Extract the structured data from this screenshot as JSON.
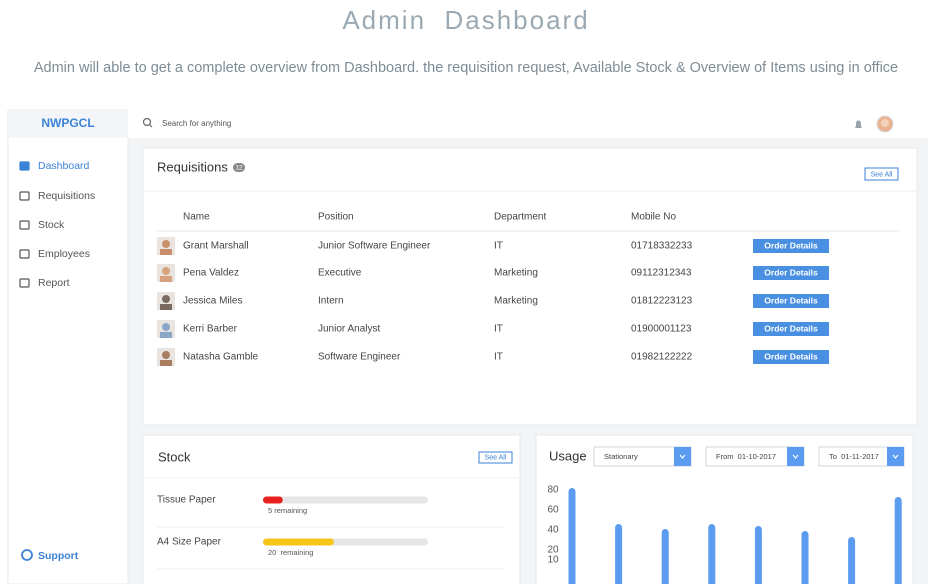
{
  "header": {
    "title": "Admin  Dashboard",
    "subtitle": "Admin will able to get a complete overview from Dashboard. the requisition request, Available Stock & Overview of Items using in office"
  },
  "sidebar": {
    "brand": "NWPGCL",
    "menu": [
      "Dashboard",
      "Requisitions",
      "Stock",
      "Employees",
      "Report"
    ],
    "support": "Support"
  },
  "topbar": {
    "search_placeholder": "Search for anything"
  },
  "requisitions": {
    "title": "Requisitions",
    "count": 12,
    "see_all": "See All",
    "columns": [
      "Name",
      "Position",
      "Department",
      "Mobile No"
    ],
    "rows": [
      [
        "Grant Marshall",
        "Junior Software Engineer",
        "IT",
        "01718332233"
      ],
      [
        "Pena Valdez",
        "Executive",
        "Marketing",
        "09112312343"
      ],
      [
        "Jessica Miles",
        "Intern",
        "Marketing",
        "01812223123"
      ],
      [
        "Kerri Barber",
        "Junior Analyst",
        "IT",
        "01900001123"
      ],
      [
        "Natasha Gamble",
        "Software Engineer",
        "IT",
        "01982122222"
      ]
    ],
    "action": "Order Details"
  },
  "stock": {
    "title": "Stock",
    "see_all": "See All",
    "items": [
      {
        "name": "Tissue Paper",
        "label": "5 remaining",
        "level": 12,
        "color": "#e8201e"
      },
      {
        "name": "A4 Size Paper",
        "label": "20  remaining",
        "level": 43,
        "color": "#f5c518"
      }
    ]
  },
  "usage": {
    "title": "Usage",
    "category": "Stationary",
    "from": "From  01-10-2017",
    "to": "To  01-11-2017"
  },
  "chart_data": {
    "type": "bar",
    "values": [
      82,
      46,
      41,
      46,
      44,
      39,
      33,
      73
    ],
    "color": "#5b9bf0",
    "ylim": [
      0,
      90
    ],
    "yticks": [
      10,
      20,
      40,
      60,
      80
    ]
  }
}
